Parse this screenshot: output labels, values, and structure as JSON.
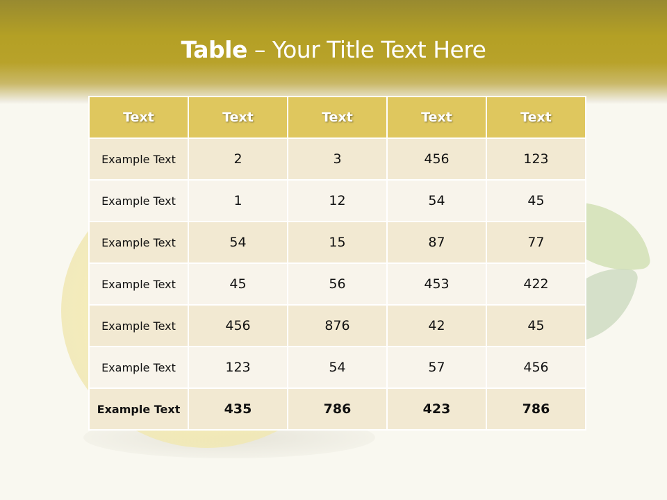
{
  "slide": {
    "title_bold": "Table",
    "title_rest": " – Your Title Text Here"
  },
  "table": {
    "headers": [
      "Text",
      "Text",
      "Text",
      "Text",
      "Text"
    ],
    "rows": [
      [
        "Example Text",
        "2",
        "3",
        "456",
        "123"
      ],
      [
        "Example Text",
        "1",
        "12",
        "54",
        "45"
      ],
      [
        "Example Text",
        "54",
        "15",
        "87",
        "77"
      ],
      [
        "Example Text",
        "45",
        "56",
        "453",
        "422"
      ],
      [
        "Example Text",
        "456",
        "876",
        "42",
        "45"
      ],
      [
        "Example Text",
        "123",
        "54",
        "57",
        "456"
      ],
      [
        "Example Text",
        "435",
        "786",
        "423",
        "786"
      ]
    ],
    "bold_last_row": true
  },
  "colors": {
    "header": "#dfc75e",
    "banner": "#b8a22a",
    "row_odd": "#f2e9d2",
    "row_even": "#f8f4eb"
  }
}
